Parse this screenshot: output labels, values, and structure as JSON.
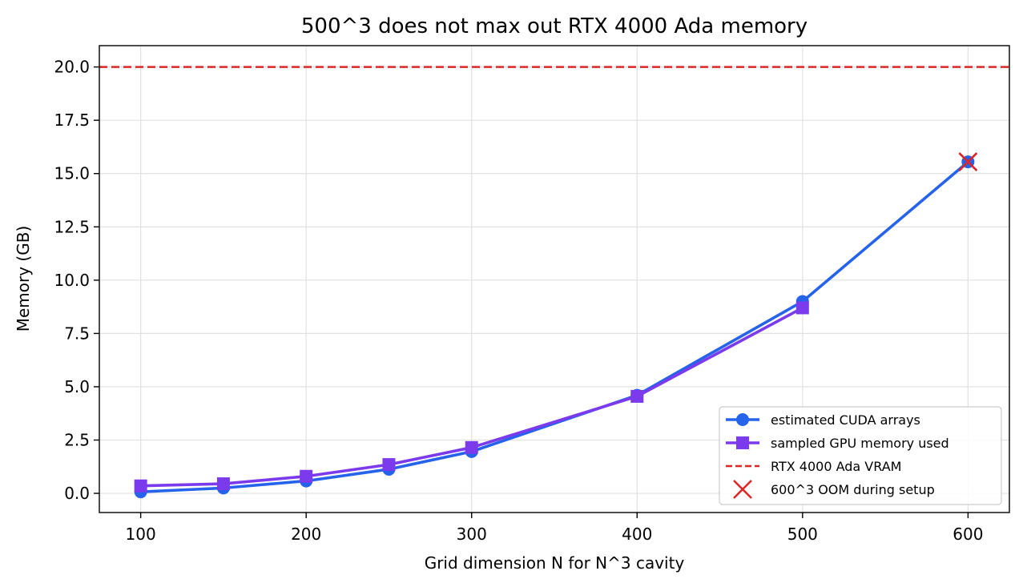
{
  "chart_data": {
    "type": "line",
    "title": "500^3 does not max out RTX 4000 Ada memory",
    "xlabel": "Grid dimension N for N^3 cavity",
    "ylabel": "Memory (GB)",
    "xlim": [
      75,
      625
    ],
    "ylim": [
      -0.9,
      21
    ],
    "x_ticks": [
      100,
      200,
      300,
      400,
      500,
      600
    ],
    "x_tick_labels": [
      "100",
      "200",
      "300",
      "400",
      "500",
      "600"
    ],
    "y_ticks": [
      0,
      2.5,
      5,
      7.5,
      10,
      12.5,
      15,
      17.5,
      20
    ],
    "y_tick_labels": [
      "0.0",
      "2.5",
      "5.0",
      "7.5",
      "10.0",
      "12.5",
      "15.0",
      "17.5",
      "20.0"
    ],
    "grid": true,
    "legend_position": "lower-right",
    "series": [
      {
        "name": "estimated CUDA arrays",
        "marker": "circle",
        "color": "#2563eb",
        "x": [
          100,
          150,
          200,
          250,
          300,
          400,
          500,
          600
        ],
        "y": [
          0.07,
          0.25,
          0.58,
          1.13,
          1.96,
          4.6,
          9.0,
          15.55
        ]
      },
      {
        "name": "sampled GPU memory used",
        "marker": "square",
        "color": "#7c3aed",
        "x": [
          100,
          150,
          200,
          250,
          300,
          400,
          500
        ],
        "y": [
          0.35,
          0.45,
          0.8,
          1.35,
          2.15,
          4.55,
          8.7
        ]
      }
    ],
    "reference_line": {
      "name": "RTX 4000 Ada VRAM",
      "y": 20,
      "color": "#dc2626",
      "style": "dashed"
    },
    "annotation_points": [
      {
        "name": "600^3 OOM during setup",
        "marker": "x",
        "color": "#dc2626",
        "x": 600,
        "y": 15.55
      }
    ]
  }
}
